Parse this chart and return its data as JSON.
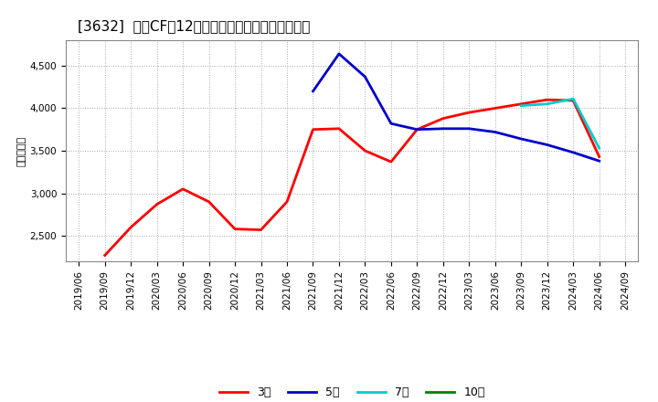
{
  "title": "[3632]  投賄CFの12か月移動合計の標準偏差の推移",
  "ylabel": "（百万円）",
  "ylim": [
    2200,
    4800
  ],
  "yticks": [
    2500,
    3000,
    3500,
    4000,
    4500
  ],
  "background_color": "#ffffff",
  "plot_bg_color": "#ffffff",
  "grid_color": "#aaaaaa",
  "series": {
    "3year": {
      "label": "3年",
      "color": "#ff0000",
      "x": [
        "2019/09",
        "2019/12",
        "2020/03",
        "2020/06",
        "2020/09",
        "2020/12",
        "2021/03",
        "2021/06",
        "2021/09",
        "2021/12",
        "2022/03",
        "2022/06",
        "2022/09",
        "2022/12",
        "2023/03",
        "2023/06",
        "2023/09",
        "2023/12",
        "2024/03",
        "2024/06"
      ],
      "y": [
        2270,
        2600,
        2870,
        3050,
        2900,
        2580,
        2570,
        2900,
        3750,
        3760,
        3500,
        3370,
        3750,
        3880,
        3950,
        4000,
        4050,
        4100,
        4090,
        3430
      ]
    },
    "5year": {
      "label": "5年",
      "color": "#0000cc",
      "x": [
        "2021/09",
        "2021/12",
        "2022/03",
        "2022/06",
        "2022/09",
        "2022/12",
        "2023/03",
        "2023/06",
        "2023/09",
        "2023/12",
        "2024/03",
        "2024/06"
      ],
      "y": [
        4200,
        4640,
        4370,
        3820,
        3750,
        3760,
        3760,
        3720,
        3640,
        3570,
        3480,
        3380
      ]
    },
    "7year": {
      "label": "7年",
      "color": "#00cccc",
      "x": [
        "2023/09",
        "2023/12",
        "2024/03",
        "2024/06"
      ],
      "y": [
        4030,
        4050,
        4110,
        3530
      ]
    },
    "10year": {
      "label": "10年",
      "color": "#008000",
      "x": [],
      "y": []
    }
  },
  "xticks": [
    "2019/06",
    "2019/09",
    "2019/12",
    "2020/03",
    "2020/06",
    "2020/09",
    "2020/12",
    "2021/03",
    "2021/06",
    "2021/09",
    "2021/12",
    "2022/03",
    "2022/06",
    "2022/09",
    "2022/12",
    "2023/03",
    "2023/06",
    "2023/09",
    "2023/12",
    "2024/03",
    "2024/06",
    "2024/09"
  ],
  "title_fontsize": 11,
  "legend_fontsize": 9,
  "tick_fontsize": 7.5,
  "ylabel_fontsize": 8,
  "line_width": 2.0
}
